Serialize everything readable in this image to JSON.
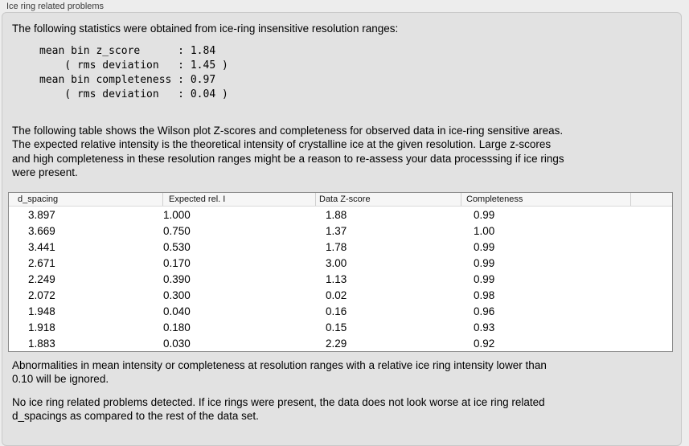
{
  "panel": {
    "title": "Ice ring related problems"
  },
  "intro": "The following statistics were obtained from ice-ring insensitive resolution ranges:",
  "stats": {
    "lines": [
      "mean bin z_score      : 1.84",
      "    ( rms deviation   : 1.45 )",
      "mean bin completeness : 0.97",
      "    ( rms deviation   : 0.04 )"
    ]
  },
  "description": {
    "lines": [
      "The following table shows the Wilson plot Z-scores and completeness for observed data in ice-ring sensitive areas.",
      "The expected relative intensity is the theoretical intensity of crystalline ice at the given resolution. Large z-scores",
      "and high completeness in these resolution ranges might be a reason to re-assess your data processsing if ice rings",
      "were present."
    ]
  },
  "table": {
    "columns": [
      "d_spacing",
      "Expected rel. I",
      "Data Z-score",
      "Completeness"
    ],
    "rows": [
      [
        "3.897",
        "1.000",
        "1.88",
        "0.99"
      ],
      [
        "3.669",
        "0.750",
        "1.37",
        "1.00"
      ],
      [
        "3.441",
        "0.530",
        "1.78",
        "0.99"
      ],
      [
        "2.671",
        "0.170",
        "3.00",
        "0.99"
      ],
      [
        "2.249",
        "0.390",
        "1.13",
        "0.99"
      ],
      [
        "2.072",
        "0.300",
        "0.02",
        "0.98"
      ],
      [
        "1.948",
        "0.040",
        "0.16",
        "0.96"
      ],
      [
        "1.918",
        "0.180",
        "0.15",
        "0.93"
      ],
      [
        "1.883",
        "0.030",
        "2.29",
        "0.92"
      ]
    ]
  },
  "note": {
    "lines": [
      "Abnormalities in mean intensity or completeness at resolution ranges with a relative ice ring intensity lower than",
      "0.10 will be ignored."
    ]
  },
  "conclusion": {
    "lines": [
      "No ice ring related problems detected. If ice rings were present, the data does not look worse at ice ring related",
      "d_spacings as compared to the rest of the data set."
    ]
  }
}
